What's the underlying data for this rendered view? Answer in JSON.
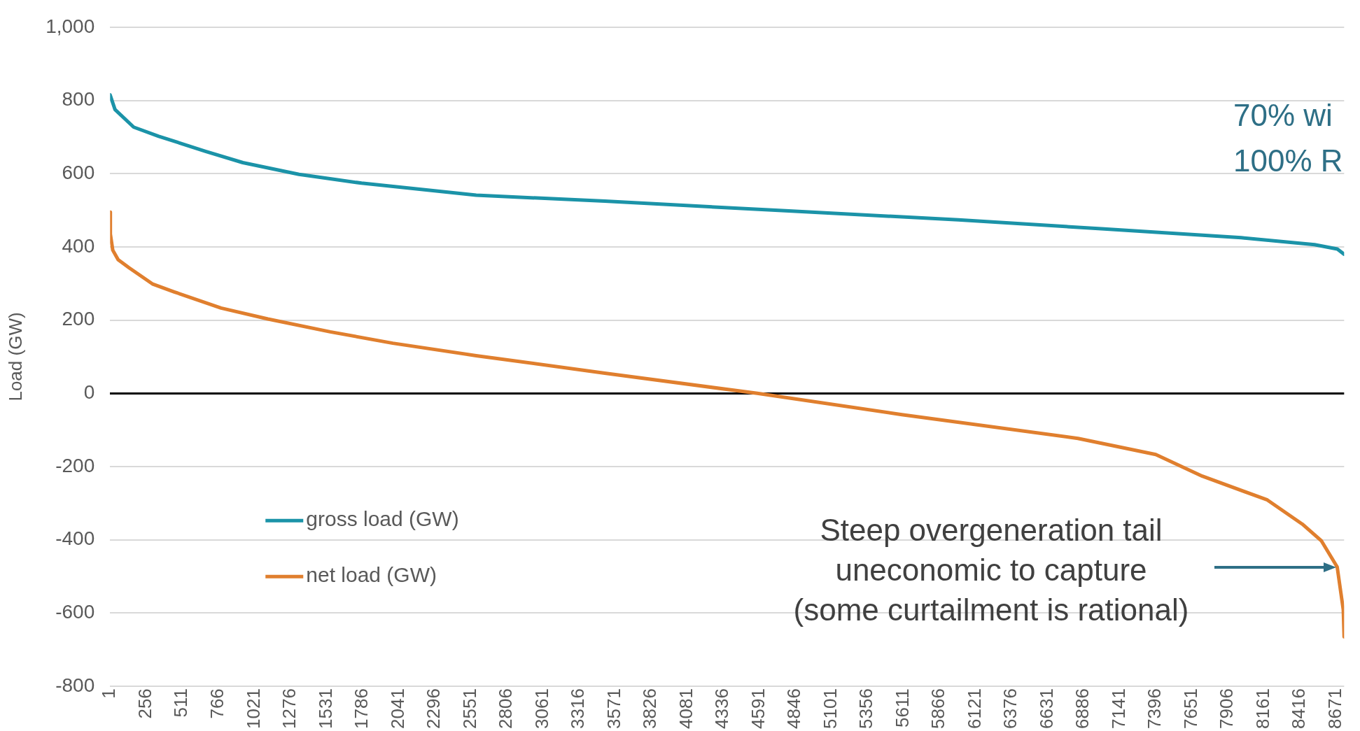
{
  "chart_data": {
    "type": "line",
    "ylabel": "Load (GW)",
    "xlim": [
      1,
      8728
    ],
    "xticks": [
      1,
      256,
      511,
      766,
      1021,
      1276,
      1531,
      1786,
      2041,
      2296,
      2551,
      2806,
      3061,
      3316,
      3571,
      3826,
      4081,
      4336,
      4591,
      4846,
      5101,
      5356,
      5611,
      5866,
      6121,
      6376,
      6631,
      6886,
      7141,
      7396,
      7651,
      7906,
      8161,
      8416,
      8671
    ],
    "ylim": [
      -800,
      1000
    ],
    "yticks": [
      -800,
      -600,
      -400,
      -200,
      0,
      200,
      400,
      600,
      800,
      {
        "value": 1000,
        "label": "1,000"
      }
    ],
    "grid": "y",
    "legend": "bottom left",
    "marker": "none",
    "line_style": "solid",
    "series": [
      {
        "name": "gross load (GW)",
        "color": "#1b93a8",
        "x": [
          1,
          36,
          168,
          345,
          676,
          940,
          1337,
          1779,
          2590,
          3500,
          4801,
          6000,
          7031,
          8000,
          8519,
          8680,
          8728
        ],
        "values": [
          815,
          775,
          727,
          702,
          661,
          630,
          598,
          574,
          541,
          525,
          498,
          474,
          449,
          425,
          406,
          394,
          380
        ]
      },
      {
        "name": "net load (GW)",
        "color": "#e07f2e",
        "x": [
          1,
          3,
          20,
          58,
          135,
          300,
          455,
          786,
          1117,
          1558,
          2000,
          2590,
          3500,
          4578,
          5600,
          6846,
          7396,
          7725,
          8185,
          8432,
          8566,
          8679,
          8722,
          8728
        ],
        "values": [
          495,
          435,
          391,
          365,
          343,
          299,
          277,
          233,
          203,
          168,
          137,
          103,
          55,
          0,
          -58,
          -123,
          -167,
          -226,
          -291,
          -357,
          -402,
          -474,
          -591,
          -665
        ]
      }
    ],
    "annotations": [
      "70% wi",
      "100% R",
      "Steep overgeneration tail\nuneconomic to capture\n(some curtailment is rational)"
    ]
  }
}
